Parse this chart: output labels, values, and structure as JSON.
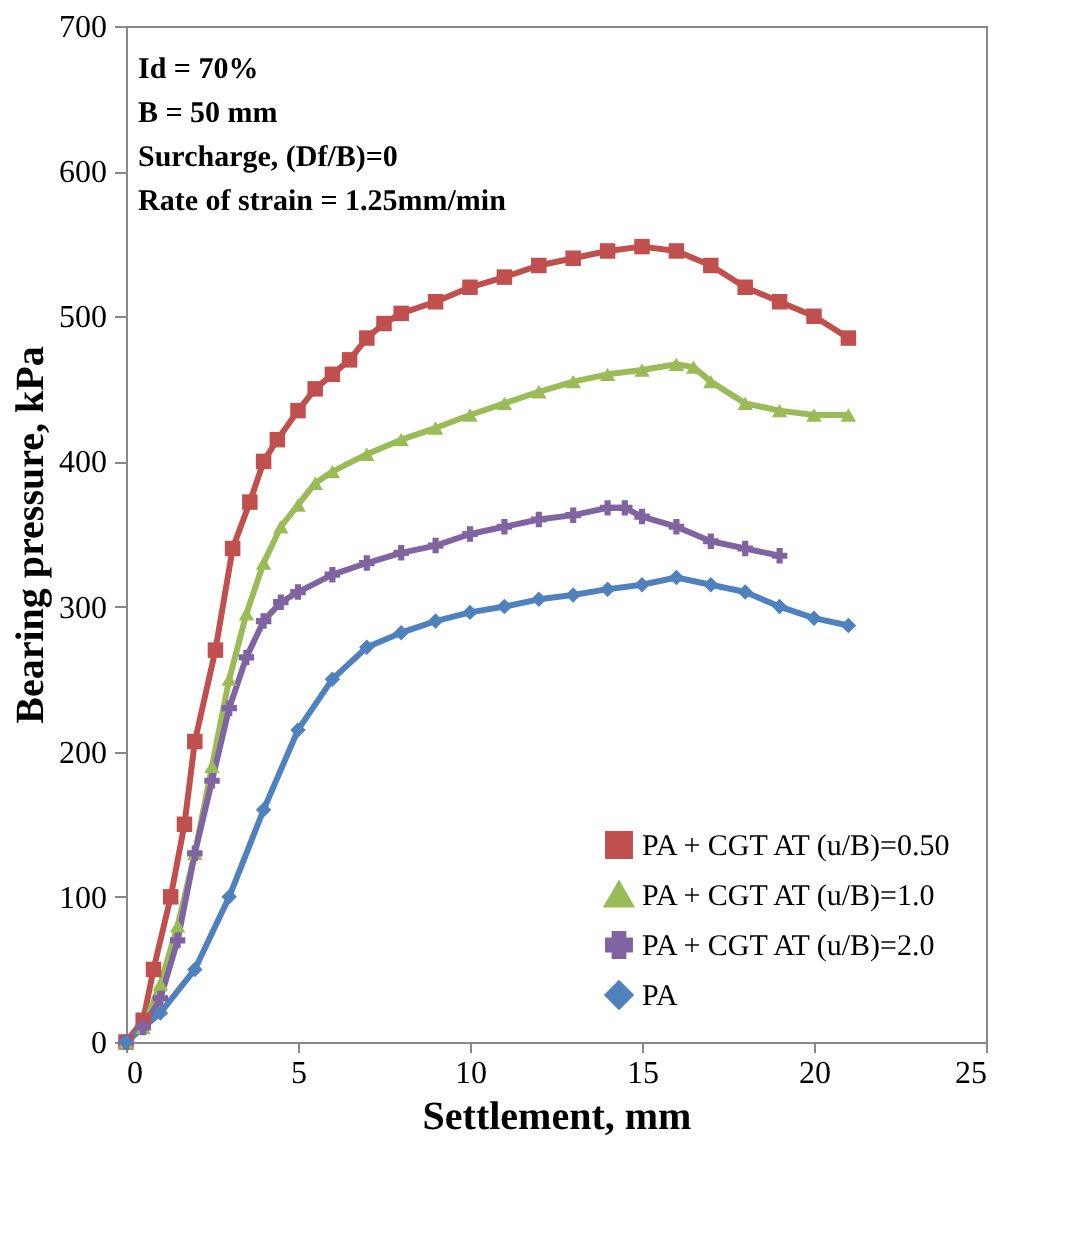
{
  "chart_data": {
    "type": "line",
    "xlabel": "Settlement,  mm",
    "ylabel": "Bearing pressure,  kPa",
    "annotations": [
      "Id = 70%",
      "B  = 50 mm",
      "Surcharge, (Df/B)=0",
      "Rate of strain = 1.25mm/min"
    ],
    "xlim": [
      0,
      25
    ],
    "xticks": [
      0,
      5,
      10,
      15,
      20,
      25
    ],
    "ylim": [
      0,
      700
    ],
    "yticks": [
      0,
      100,
      200,
      300,
      400,
      500,
      600,
      700
    ],
    "grid": false,
    "legend": "bottom right",
    "series": [
      {
        "name": "PA + CGT  AT (u/B)=0.50",
        "color": "#c0504d",
        "marker": "square",
        "x": [
          0,
          0.5,
          0.8,
          1.3,
          1.7,
          2,
          2.6,
          3.1,
          3.6,
          4,
          4.4,
          5,
          5.5,
          6,
          6.5,
          7,
          7.5,
          8,
          9,
          10,
          11,
          12,
          13,
          14,
          15,
          16,
          17,
          18,
          19,
          20,
          21
        ],
        "values": [
          0,
          15,
          50,
          100,
          150,
          207,
          270,
          340,
          372,
          400,
          415,
          435,
          450,
          460,
          470,
          485,
          495,
          502,
          510,
          520,
          527,
          535,
          540,
          545,
          548,
          545,
          535,
          520,
          510,
          500,
          485
        ]
      },
      {
        "name": "PA + CGT  AT (u/B)=1.0",
        "color": "#9bbb59",
        "marker": "triangle",
        "x": [
          0,
          0.5,
          1,
          1.5,
          2,
          2.5,
          3,
          3.5,
          4,
          4.5,
          5,
          5.5,
          6,
          7,
          8,
          9,
          10,
          11,
          12,
          13,
          14,
          15,
          16,
          16.5,
          17,
          18,
          19,
          20,
          21
        ],
        "values": [
          0,
          10,
          40,
          80,
          130,
          190,
          250,
          295,
          330,
          355,
          370,
          385,
          393,
          405,
          415,
          423,
          432,
          440,
          448,
          455,
          460,
          463,
          467,
          465,
          455,
          440,
          435,
          432,
          432
        ]
      },
      {
        "name": "PA + CGT  AT (u/B)=2.0",
        "color": "#8064a2",
        "marker": "cross",
        "x": [
          0,
          0.5,
          1,
          1.5,
          2,
          2.5,
          3,
          3.5,
          4,
          4.5,
          5,
          6,
          7,
          8,
          9,
          10,
          11,
          12,
          13,
          14,
          14.5,
          15,
          16,
          17,
          18,
          19
        ],
        "values": [
          0,
          10,
          30,
          70,
          130,
          180,
          230,
          265,
          290,
          303,
          310,
          322,
          330,
          337,
          342,
          350,
          355,
          360,
          363,
          368,
          368,
          362,
          355,
          345,
          340,
          335
        ]
      },
      {
        "name": "PA",
        "color": "#4f81bd",
        "marker": "diamond",
        "x": [
          0,
          1,
          2,
          3,
          4,
          5,
          6,
          7,
          8,
          9,
          10,
          11,
          12,
          13,
          14,
          15,
          16,
          17,
          18,
          19,
          20,
          21
        ],
        "values": [
          0,
          20,
          50,
          100,
          160,
          215,
          250,
          272,
          282,
          290,
          296,
          300,
          305,
          308,
          312,
          315,
          320,
          315,
          310,
          300,
          292,
          287
        ]
      }
    ]
  }
}
